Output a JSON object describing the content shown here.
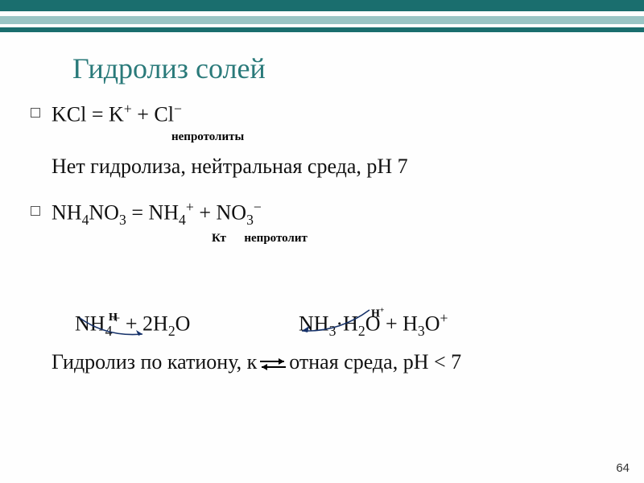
{
  "header": {
    "bars": [
      {
        "height": 14,
        "color": "#1a6e6e"
      },
      {
        "height": 6,
        "color": "#ffffff"
      },
      {
        "height": 10,
        "color": "#9ac5c5"
      },
      {
        "height": 4,
        "color": "#ffffff"
      },
      {
        "height": 6,
        "color": "#1a6e6e"
      }
    ]
  },
  "title": "Гидролиз солей",
  "eq1": {
    "formula_html": "KCl = K<sup>+</sup> + Cl<sup>−</sup>",
    "sublabel": "непротолиты"
  },
  "line2": "Нет гидролиза, нейтральная среда, рН 7",
  "eq2": {
    "formula_html": "NH<sub>4</sub>NO<sub>3</sub> = NH<sub>4</sub><sup>+</sup> + NO<sub>3</sub><sup>−</sup>",
    "sublabel": "Кт      непротолит"
  },
  "reaction": {
    "left_html": "NH<sub>4</sub><sup>+</sup> + 2H<sub>2</sub>O",
    "right_html": "NH<sub>3</sub>·H<sub>2</sub>O + H<sub>3</sub>O<sup>+</sup>",
    "h_left": "H",
    "h_right": "H<sup>+</sup>",
    "arrow_color": "#16326a"
  },
  "final_pre": "Гидролиз по катиону, к",
  "final_post": "отная среда, рН < 7",
  "page_number": "64"
}
